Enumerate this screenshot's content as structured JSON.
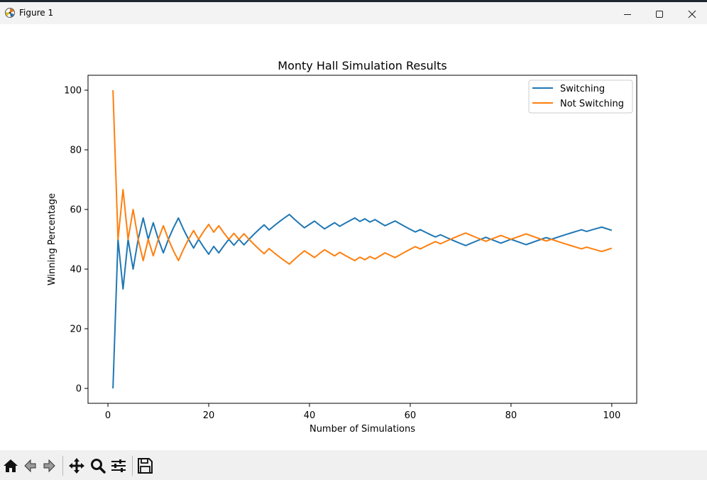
{
  "window": {
    "title": "Figure 1",
    "controls": [
      "minimize",
      "maximize",
      "close"
    ]
  },
  "toolbar": {
    "buttons": [
      "home-icon",
      "back-icon",
      "forward-icon",
      "pan-icon",
      "zoom-icon",
      "configure-subplots-icon",
      "save-icon"
    ]
  },
  "chart_data": {
    "type": "line",
    "title": "Monty Hall Simulation Results",
    "xlabel": "Number of Simulations",
    "ylabel": "Winning Percentage",
    "xlim": [
      -3.95,
      104.95
    ],
    "ylim": [
      -5,
      105
    ],
    "xticks": [
      0,
      20,
      40,
      60,
      80,
      100
    ],
    "yticks": [
      0,
      20,
      40,
      60,
      80,
      100
    ],
    "grid": false,
    "legend_position": "upper right",
    "x": [
      1,
      2,
      3,
      4,
      5,
      6,
      7,
      8,
      9,
      10,
      11,
      12,
      13,
      14,
      15,
      16,
      17,
      18,
      19,
      20,
      21,
      22,
      23,
      24,
      25,
      26,
      27,
      28,
      29,
      30,
      31,
      32,
      33,
      34,
      35,
      36,
      37,
      38,
      39,
      40,
      41,
      42,
      43,
      44,
      45,
      46,
      47,
      48,
      49,
      50,
      51,
      52,
      53,
      54,
      55,
      56,
      57,
      58,
      59,
      60,
      61,
      62,
      63,
      64,
      65,
      66,
      67,
      68,
      69,
      70,
      71,
      72,
      73,
      74,
      75,
      76,
      77,
      78,
      79,
      80,
      81,
      82,
      83,
      84,
      85,
      86,
      87,
      88,
      89,
      90,
      91,
      92,
      93,
      94,
      95,
      96,
      97,
      98,
      99,
      100
    ],
    "series": [
      {
        "name": "Switching",
        "color": "#1f77b4",
        "values": [
          0.0,
          50.0,
          33.33,
          50.0,
          40.0,
          50.0,
          57.14,
          50.0,
          55.56,
          50.0,
          45.45,
          50.0,
          53.85,
          57.14,
          53.33,
          50.0,
          47.06,
          50.0,
          47.37,
          45.0,
          47.62,
          45.45,
          47.83,
          50.0,
          48.0,
          50.0,
          48.15,
          50.0,
          51.72,
          53.33,
          54.84,
          53.13,
          54.55,
          55.88,
          57.14,
          58.33,
          56.76,
          55.26,
          53.85,
          55.0,
          56.1,
          54.76,
          53.49,
          54.55,
          55.56,
          54.35,
          55.32,
          56.25,
          57.14,
          56.0,
          56.86,
          55.77,
          56.6,
          55.56,
          54.55,
          55.36,
          56.14,
          55.17,
          54.24,
          53.33,
          52.46,
          53.23,
          52.38,
          51.56,
          50.77,
          51.52,
          50.75,
          50.0,
          49.28,
          48.57,
          47.89,
          48.61,
          49.32,
          50.0,
          50.67,
          50.0,
          49.35,
          48.72,
          49.37,
          50.0,
          49.38,
          48.78,
          48.19,
          48.81,
          49.41,
          50.0,
          50.57,
          50.0,
          50.56,
          51.11,
          51.65,
          52.17,
          52.69,
          53.19,
          52.63,
          53.13,
          53.61,
          54.08,
          53.54,
          53.0
        ]
      },
      {
        "name": "Not Switching",
        "color": "#ff7f0e",
        "values": [
          100.0,
          50.0,
          66.67,
          50.0,
          60.0,
          50.0,
          42.86,
          50.0,
          44.44,
          50.0,
          54.55,
          50.0,
          46.15,
          42.86,
          46.67,
          50.0,
          52.94,
          50.0,
          52.63,
          55.0,
          52.38,
          54.55,
          52.17,
          50.0,
          52.0,
          50.0,
          51.85,
          50.0,
          48.28,
          46.67,
          45.16,
          46.88,
          45.45,
          44.12,
          42.86,
          41.67,
          43.24,
          44.74,
          46.15,
          45.0,
          43.9,
          45.24,
          46.51,
          45.45,
          44.44,
          45.65,
          44.68,
          43.75,
          42.86,
          44.0,
          43.14,
          44.23,
          43.4,
          44.44,
          45.45,
          44.64,
          43.86,
          44.83,
          45.76,
          46.67,
          47.54,
          46.77,
          47.62,
          48.44,
          49.23,
          48.48,
          49.25,
          50.0,
          50.72,
          51.43,
          52.11,
          51.39,
          50.68,
          50.0,
          49.33,
          50.0,
          50.65,
          51.28,
          50.63,
          50.0,
          50.62,
          51.22,
          51.81,
          51.19,
          50.59,
          50.0,
          49.43,
          50.0,
          49.44,
          48.89,
          48.35,
          47.83,
          47.31,
          46.81,
          47.37,
          46.88,
          46.39,
          45.92,
          46.46,
          47.0
        ]
      }
    ]
  }
}
